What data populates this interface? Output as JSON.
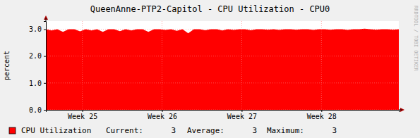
{
  "chart_data": {
    "type": "area",
    "title": "QueenAnne-PTP2-Capitol - CPU Utilization - CPU0",
    "y_label": "percent",
    "watermark": "RRDTOOL / TOBI OETIKER",
    "x": [
      0,
      0.5,
      1,
      1.5,
      2,
      2.5,
      3,
      3.5,
      4,
      4.5,
      5,
      5.5,
      6,
      6.5,
      7,
      7.5,
      8,
      8.5,
      9,
      9.5,
      10,
      10.5,
      11,
      11.5,
      12,
      12.5,
      13,
      13.5,
      14,
      14.5,
      15,
      15.5,
      16,
      16.5,
      17,
      17.5,
      18,
      18.5,
      19,
      19.5,
      20,
      20.5,
      21,
      21.5,
      22,
      22.5,
      23,
      23.5,
      24,
      24.5,
      25,
      25.5,
      26,
      26.5,
      27,
      27.5,
      28,
      28.5,
      29,
      29.5,
      30,
      30.5,
      31
    ],
    "series": [
      {
        "name": "CPU Utilization",
        "color": "#ff0000",
        "values": [
          3.0,
          2.95,
          3.0,
          2.9,
          3.0,
          3.0,
          2.92,
          3.0,
          2.95,
          3.0,
          2.9,
          3.0,
          3.0,
          2.93,
          3.0,
          2.95,
          3.0,
          3.0,
          2.9,
          3.0,
          3.0,
          2.97,
          3.0,
          2.94,
          3.0,
          2.85,
          3.0,
          3.0,
          2.96,
          3.0,
          3.0,
          2.95,
          3.0,
          2.97,
          3.0,
          3.0,
          2.96,
          3.0,
          3.0,
          2.98,
          3.0,
          2.97,
          3.0,
          3.0,
          2.98,
          3.0,
          3.0,
          2.97,
          3.0,
          3.0,
          2.98,
          3.0,
          3.0,
          2.97,
          3.0,
          3.0,
          3.02,
          3.0,
          2.98,
          3.0,
          3.0,
          2.98,
          3.0
        ]
      }
    ],
    "xlim": [
      0,
      31
    ],
    "xticks": [
      {
        "value": 3.2,
        "label": "Week 25"
      },
      {
        "value": 10.2,
        "label": "Week 26"
      },
      {
        "value": 17.2,
        "label": "Week 27"
      },
      {
        "value": 24.2,
        "label": "Week 28"
      }
    ],
    "ylim": [
      0,
      3.3
    ],
    "yticks": [
      {
        "value": 0,
        "label": "0.0"
      },
      {
        "value": 1,
        "label": "1.0"
      },
      {
        "value": 2,
        "label": "2.0"
      },
      {
        "value": 3,
        "label": "3.0"
      }
    ],
    "grid": true,
    "stats": [
      {
        "label": "Current:",
        "value": 3
      },
      {
        "label": "Average:",
        "value": 3
      },
      {
        "label": "Maximum:",
        "value": 3
      }
    ]
  }
}
